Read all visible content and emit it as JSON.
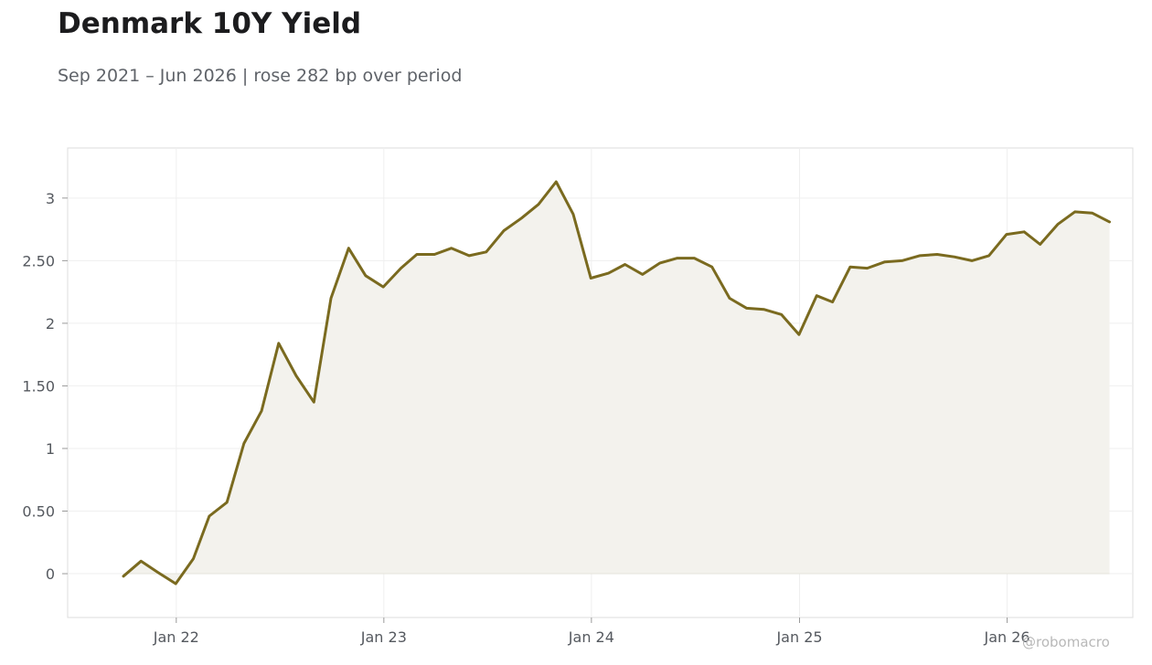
{
  "header": {
    "title": "Denmark 10Y Yield",
    "subtitle": "Sep 2021 – Jun 2026 | rose 282 bp over period"
  },
  "watermark": "@robomacro",
  "colors": {
    "line": "#7a6a1f",
    "fill": "#f3f2ed",
    "grid": "#efefef",
    "frame": "#dcdcdc",
    "tick_text": "#55595f"
  },
  "chart_data": {
    "type": "area",
    "title": "Denmark 10Y Yield",
    "xlabel": "",
    "ylabel": "",
    "ylim": [
      -0.35,
      3.4
    ],
    "xlim": [
      "2021-06-24",
      "2026-08-10"
    ],
    "grid": true,
    "legend": "none",
    "yticks": [
      {
        "value": 0,
        "label": "0"
      },
      {
        "value": 0.5,
        "label": "0.50"
      },
      {
        "value": 1,
        "label": "1"
      },
      {
        "value": 1.5,
        "label": "1.50"
      },
      {
        "value": 2,
        "label": "2"
      },
      {
        "value": 2.5,
        "label": "2.50"
      },
      {
        "value": 3,
        "label": "3"
      }
    ],
    "xticks": [
      {
        "date": "2022-01-01",
        "label": "Jan 22"
      },
      {
        "date": "2023-01-01",
        "label": "Jan 23"
      },
      {
        "date": "2024-01-01",
        "label": "Jan 24"
      },
      {
        "date": "2025-01-01",
        "label": "Jan 25"
      },
      {
        "date": "2026-01-01",
        "label": "Jan 26"
      }
    ],
    "series": [
      {
        "x": [
          "2021-09-30",
          "2021-10-31",
          "2021-11-30",
          "2021-12-31",
          "2022-01-31",
          "2022-02-28",
          "2022-03-31",
          "2022-04-30",
          "2022-05-31",
          "2022-06-30",
          "2022-07-31",
          "2022-08-31",
          "2022-09-30",
          "2022-10-31",
          "2022-11-30",
          "2022-12-31",
          "2023-01-31",
          "2023-02-28",
          "2023-03-31",
          "2023-04-30",
          "2023-05-31",
          "2023-06-30",
          "2023-07-31",
          "2023-08-31",
          "2023-09-30",
          "2023-10-31",
          "2023-11-30",
          "2023-12-31",
          "2024-01-31",
          "2024-02-29",
          "2024-03-31",
          "2024-04-30",
          "2024-05-31",
          "2024-06-30",
          "2024-07-31",
          "2024-08-31",
          "2024-09-30",
          "2024-10-31",
          "2024-11-30",
          "2024-12-31",
          "2025-01-31",
          "2025-02-28",
          "2025-03-31",
          "2025-04-30",
          "2025-05-31",
          "2025-06-30",
          "2025-07-31",
          "2025-08-31",
          "2025-09-30",
          "2025-10-31",
          "2025-11-30",
          "2025-12-31",
          "2026-01-31",
          "2026-02-28",
          "2026-03-31",
          "2026-04-30",
          "2026-05-31",
          "2026-06-30"
        ],
        "values": [
          -0.02,
          0.1,
          0.01,
          -0.08,
          0.12,
          0.46,
          0.57,
          1.04,
          1.3,
          1.84,
          1.58,
          1.37,
          2.2,
          2.6,
          2.38,
          2.29,
          2.44,
          2.55,
          2.55,
          2.6,
          2.54,
          2.57,
          2.74,
          2.84,
          2.95,
          3.13,
          2.87,
          2.36,
          2.4,
          2.47,
          2.39,
          2.48,
          2.52,
          2.52,
          2.45,
          2.2,
          2.12,
          2.11,
          2.07,
          1.91,
          2.22,
          2.17,
          2.45,
          2.44,
          2.49,
          2.5,
          2.54,
          2.55,
          2.53,
          2.5,
          2.54,
          2.71,
          2.73,
          2.63,
          2.79,
          2.89,
          2.88,
          2.81
        ]
      }
    ]
  }
}
